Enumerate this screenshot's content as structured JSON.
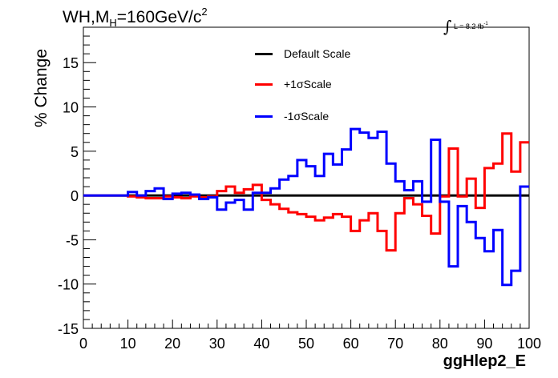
{
  "title": {
    "prefix": "WH,M",
    "subscript": "H",
    "value": "=160GeV/c",
    "superscript": "2"
  },
  "luminosity": {
    "symbol": "∫",
    "text": "L = 8.2 fb",
    "superscript": "-1"
  },
  "colors": {
    "default": "#000000",
    "plus": "#ff0000",
    "minus": "#0000ff"
  },
  "chart_data": {
    "type": "line",
    "xlabel": "ggHlep2_E",
    "ylabel": "% Change",
    "xlim": [
      0,
      100
    ],
    "ylim": [
      -15,
      19
    ],
    "xticks": [
      "0",
      "10",
      "20",
      "30",
      "40",
      "50",
      "60",
      "70",
      "80",
      "90",
      "100"
    ],
    "yticks": [
      "-15",
      "-10",
      "-5",
      "0",
      "5",
      "10",
      "15"
    ],
    "legend": [
      "Default Scale",
      "+1σScale",
      "-1σScale"
    ],
    "legend_position": "top-center",
    "bin_edges": [
      0,
      2,
      4,
      6,
      8,
      10,
      12,
      14,
      16,
      18,
      20,
      22,
      24,
      26,
      28,
      30,
      32,
      34,
      36,
      38,
      40,
      42,
      44,
      46,
      48,
      50,
      52,
      54,
      56,
      58,
      60,
      62,
      64,
      66,
      68,
      70,
      72,
      74,
      76,
      78,
      80,
      82,
      84,
      86,
      88,
      90,
      92,
      94,
      96,
      98,
      100
    ],
    "series": [
      {
        "name": "Default Scale",
        "values": [
          0,
          0,
          0,
          0,
          0,
          0,
          0,
          0,
          0,
          0,
          0,
          0,
          0,
          0,
          0,
          0,
          0,
          0,
          0,
          0,
          0,
          0,
          0,
          0,
          0,
          0,
          0,
          0,
          0,
          0,
          0,
          0,
          0,
          0,
          0,
          0,
          0,
          0,
          0,
          0,
          0,
          0,
          0,
          0,
          0,
          0,
          0,
          0,
          0,
          0
        ]
      },
      {
        "name": "+1σScale",
        "values": [
          0,
          0,
          0,
          0,
          0,
          -0.1,
          -0.2,
          -0.3,
          -0.3,
          -0.1,
          -0.2,
          -0.3,
          -0.1,
          -0.2,
          -0.1,
          0.5,
          1.0,
          0.3,
          0.7,
          1.2,
          -0.5,
          -1.0,
          -1.5,
          -1.9,
          -2.1,
          -2.4,
          -2.8,
          -2.5,
          -2.1,
          -2.4,
          -4.0,
          -2.8,
          -2.0,
          -4.0,
          -6.2,
          -2.0,
          -0.3,
          -1.0,
          -2.3,
          -4.3,
          -0.1,
          5.3,
          -0.1,
          1.9,
          -1.4,
          3.1,
          3.6,
          7.0,
          2.7,
          6.0
        ]
      },
      {
        "name": "-1σScale",
        "values": [
          0,
          0,
          0,
          0,
          0,
          0.4,
          0,
          0.5,
          0.8,
          -0.4,
          0.2,
          0.3,
          0.1,
          -0.4,
          -0.2,
          -1.6,
          -0.8,
          -0.5,
          -1.6,
          0.3,
          0.3,
          0.8,
          1.8,
          2.2,
          4.0,
          3.3,
          2.2,
          4.7,
          3.5,
          5.2,
          7.5,
          7.1,
          6.5,
          7.2,
          3.6,
          1.6,
          0.6,
          1.6,
          -0.7,
          6.3,
          -0.7,
          -8.0,
          -1.2,
          -3.0,
          -4.8,
          -6.3,
          -3.9,
          -10.1,
          -8.5,
          1.0
        ]
      }
    ]
  }
}
